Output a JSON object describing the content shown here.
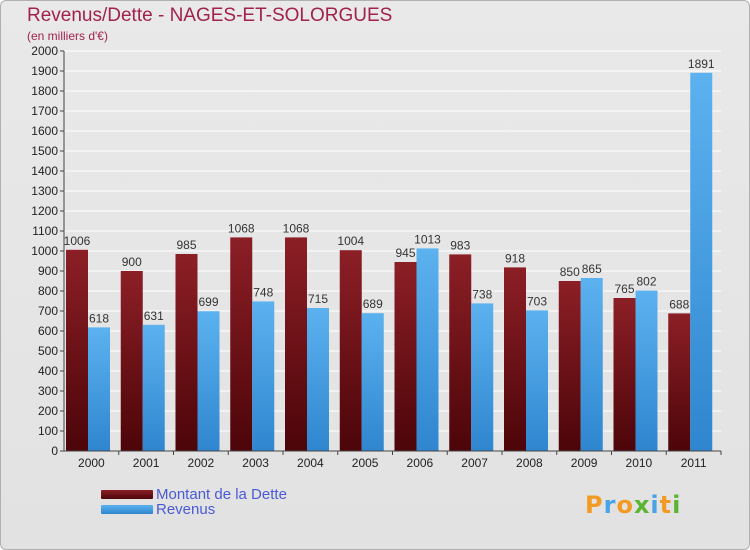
{
  "chart_data": {
    "type": "bar",
    "title": "Revenus/Dette - NAGES-ET-SOLORGUES",
    "subtitle": "(en milliers d'€)",
    "categories": [
      "2000",
      "2001",
      "2002",
      "2003",
      "2004",
      "2005",
      "2006",
      "2007",
      "2008",
      "2009",
      "2010",
      "2011"
    ],
    "series": [
      {
        "name": "Montant de la Dette",
        "color": "#6e0f14",
        "values": [
          1006,
          900,
          985,
          1068,
          1068,
          1004,
          945,
          983,
          918,
          850,
          765,
          688
        ]
      },
      {
        "name": "Revenus",
        "color": "#4aa3e6",
        "values": [
          618,
          631,
          699,
          748,
          715,
          689,
          1013,
          738,
          703,
          865,
          802,
          1891
        ]
      }
    ],
    "ylim": [
      0,
      2000
    ],
    "ytick_step": 100,
    "grid": true,
    "legend": "bottom-left"
  },
  "logo": {
    "letters": [
      "P",
      "r",
      "o",
      "x",
      "i",
      "t",
      "i"
    ],
    "colors": [
      "#f29b24",
      "#4aa3e6",
      "#f29b24",
      "#5cb531",
      "#4aa3e6",
      "#f29b24",
      "#5cb531"
    ]
  }
}
